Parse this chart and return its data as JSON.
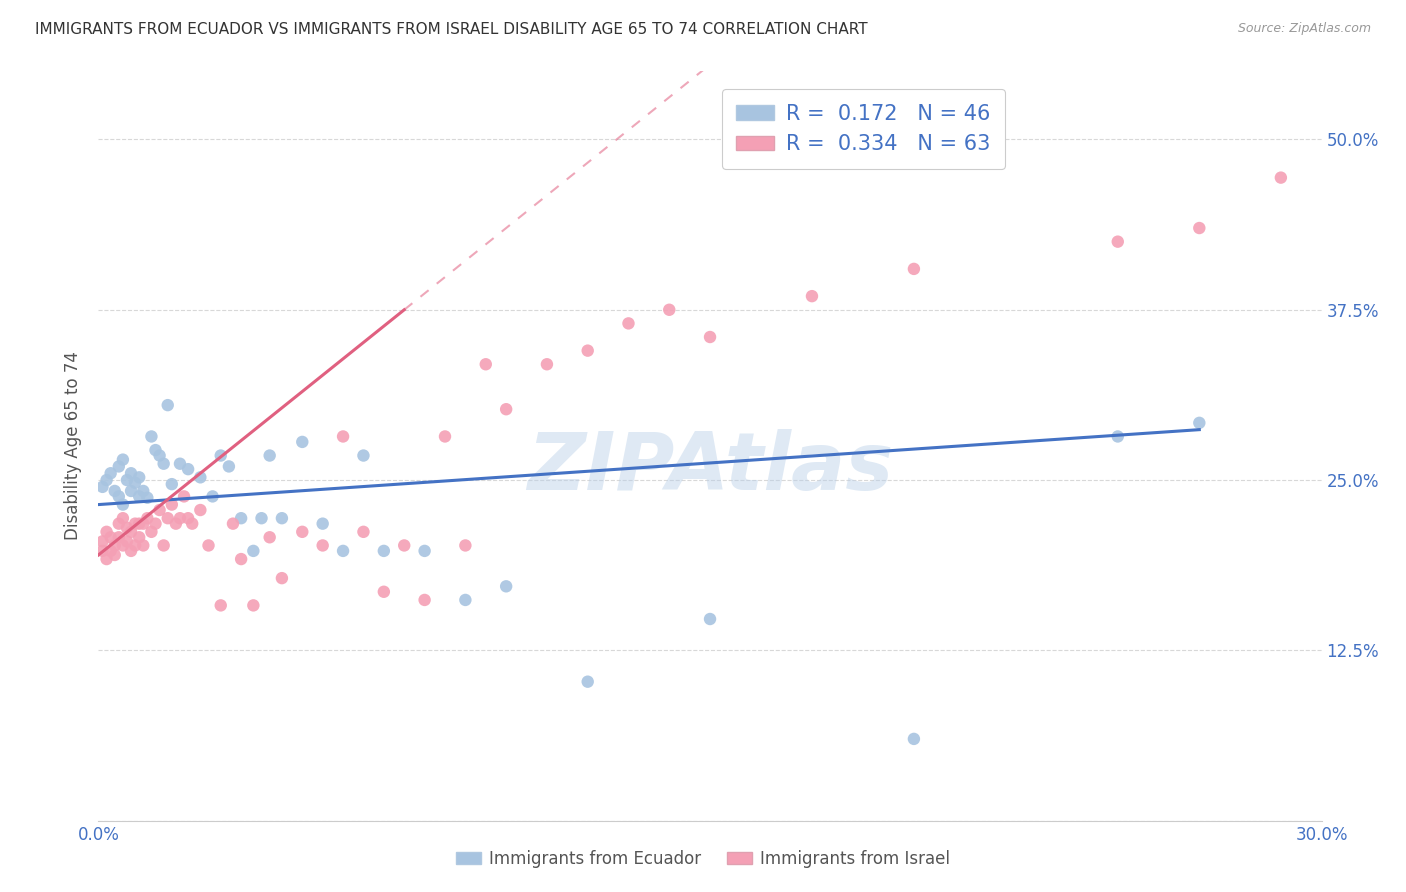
{
  "title": "IMMIGRANTS FROM ECUADOR VS IMMIGRANTS FROM ISRAEL DISABILITY AGE 65 TO 74 CORRELATION CHART",
  "source": "Source: ZipAtlas.com",
  "ylabel": "Disability Age 65 to 74",
  "ecuador_color": "#a8c4e0",
  "ecuador_edge_color": "#7aaed4",
  "israel_color": "#f4a0b5",
  "israel_edge_color": "#e87898",
  "ecuador_line_color": "#4472c4",
  "israel_line_color": "#e06080",
  "ecuador_R": "0.172",
  "ecuador_N": "46",
  "israel_R": "0.334",
  "israel_N": "63",
  "watermark": "ZIPAtlas",
  "background_color": "#ffffff",
  "grid_color": "#d8d8d8",
  "ecuador_scatter_x": [
    0.001,
    0.002,
    0.003,
    0.004,
    0.005,
    0.005,
    0.006,
    0.006,
    0.007,
    0.008,
    0.008,
    0.009,
    0.01,
    0.01,
    0.011,
    0.012,
    0.013,
    0.014,
    0.015,
    0.016,
    0.017,
    0.018,
    0.02,
    0.022,
    0.025,
    0.028,
    0.03,
    0.032,
    0.035,
    0.038,
    0.04,
    0.042,
    0.045,
    0.05,
    0.055,
    0.06,
    0.065,
    0.07,
    0.08,
    0.09,
    0.1,
    0.12,
    0.15,
    0.2,
    0.25,
    0.27
  ],
  "ecuador_scatter_y": [
    0.245,
    0.25,
    0.255,
    0.242,
    0.238,
    0.26,
    0.232,
    0.265,
    0.25,
    0.242,
    0.255,
    0.248,
    0.252,
    0.238,
    0.242,
    0.237,
    0.282,
    0.272,
    0.268,
    0.262,
    0.305,
    0.247,
    0.262,
    0.258,
    0.252,
    0.238,
    0.268,
    0.26,
    0.222,
    0.198,
    0.222,
    0.268,
    0.222,
    0.278,
    0.218,
    0.198,
    0.268,
    0.198,
    0.198,
    0.162,
    0.172,
    0.102,
    0.148,
    0.06,
    0.282,
    0.292
  ],
  "israel_scatter_x": [
    0.001,
    0.001,
    0.002,
    0.002,
    0.003,
    0.003,
    0.004,
    0.004,
    0.005,
    0.005,
    0.006,
    0.006,
    0.007,
    0.007,
    0.008,
    0.008,
    0.009,
    0.009,
    0.01,
    0.01,
    0.011,
    0.011,
    0.012,
    0.013,
    0.014,
    0.015,
    0.016,
    0.017,
    0.018,
    0.019,
    0.02,
    0.021,
    0.022,
    0.023,
    0.025,
    0.027,
    0.03,
    0.033,
    0.035,
    0.038,
    0.042,
    0.045,
    0.05,
    0.055,
    0.06,
    0.065,
    0.07,
    0.075,
    0.08,
    0.085,
    0.09,
    0.095,
    0.1,
    0.11,
    0.12,
    0.13,
    0.14,
    0.15,
    0.175,
    0.2,
    0.25,
    0.27,
    0.29
  ],
  "israel_scatter_y": [
    0.205,
    0.198,
    0.212,
    0.192,
    0.208,
    0.198,
    0.202,
    0.195,
    0.218,
    0.208,
    0.222,
    0.202,
    0.215,
    0.205,
    0.198,
    0.212,
    0.202,
    0.218,
    0.208,
    0.218,
    0.202,
    0.218,
    0.222,
    0.212,
    0.218,
    0.228,
    0.202,
    0.222,
    0.232,
    0.218,
    0.222,
    0.238,
    0.222,
    0.218,
    0.228,
    0.202,
    0.158,
    0.218,
    0.192,
    0.158,
    0.208,
    0.178,
    0.212,
    0.202,
    0.282,
    0.212,
    0.168,
    0.202,
    0.162,
    0.282,
    0.202,
    0.335,
    0.302,
    0.335,
    0.345,
    0.365,
    0.375,
    0.355,
    0.385,
    0.405,
    0.425,
    0.435,
    0.472
  ],
  "xlim": [
    0.0,
    0.3
  ],
  "ylim": [
    0.0,
    0.55
  ],
  "yticks": [
    0.0,
    0.125,
    0.25,
    0.375,
    0.5
  ],
  "ytick_labels": [
    "",
    "12.5%",
    "25.0%",
    "37.5%",
    "50.0%"
  ],
  "xtick_positions": [
    0.0,
    0.05,
    0.1,
    0.15,
    0.2,
    0.25,
    0.3
  ],
  "xtick_labels": [
    "0.0%",
    "",
    "",
    "",
    "",
    "",
    "30.0%"
  ],
  "ecuador_line_x_start": 0.0,
  "ecuador_line_x_end": 0.27,
  "israel_line_x_solid_start": 0.0,
  "israel_line_x_solid_end": 0.075,
  "israel_line_x_dash_end": 0.28
}
